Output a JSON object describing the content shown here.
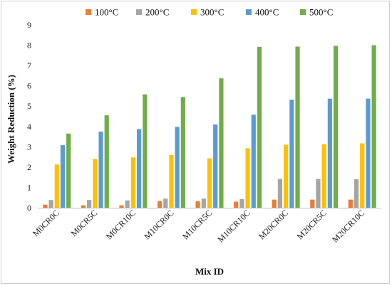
{
  "chart_data": {
    "type": "bar",
    "title": "",
    "xlabel": "Mix ID",
    "ylabel": "Weight Reduction (%)",
    "ylim": [
      0,
      9
    ],
    "yticks": [
      0,
      1,
      2,
      3,
      4,
      5,
      6,
      7,
      8,
      9
    ],
    "grid": false,
    "legend_position": "top",
    "categories": [
      "M0CR0C",
      "M0CR5C",
      "M0CR10C",
      "M10CR0C",
      "M10CR5C",
      "M10CR10C",
      "M20CR0C",
      "M20CR5C",
      "M20CR10C"
    ],
    "series": [
      {
        "name": "100°C",
        "color": "#ED7D31",
        "values": [
          0.15,
          0.12,
          0.12,
          0.33,
          0.32,
          0.3,
          0.4,
          0.4,
          0.4
        ]
      },
      {
        "name": "200°C",
        "color": "#A5A5A5",
        "values": [
          0.38,
          0.38,
          0.36,
          0.45,
          0.45,
          0.43,
          1.42,
          1.42,
          1.4
        ]
      },
      {
        "name": "300°C",
        "color": "#FFC000",
        "values": [
          2.13,
          2.4,
          2.48,
          2.6,
          2.43,
          2.93,
          3.1,
          3.13,
          3.17
        ]
      },
      {
        "name": "400°C",
        "color": "#5B9BD5",
        "values": [
          3.08,
          3.75,
          3.87,
          3.98,
          4.1,
          4.58,
          5.32,
          5.37,
          5.37
        ]
      },
      {
        "name": "500°C",
        "color": "#70AD47",
        "values": [
          3.65,
          4.55,
          5.58,
          5.45,
          6.37,
          7.92,
          7.93,
          7.97,
          8.0
        ]
      }
    ]
  }
}
